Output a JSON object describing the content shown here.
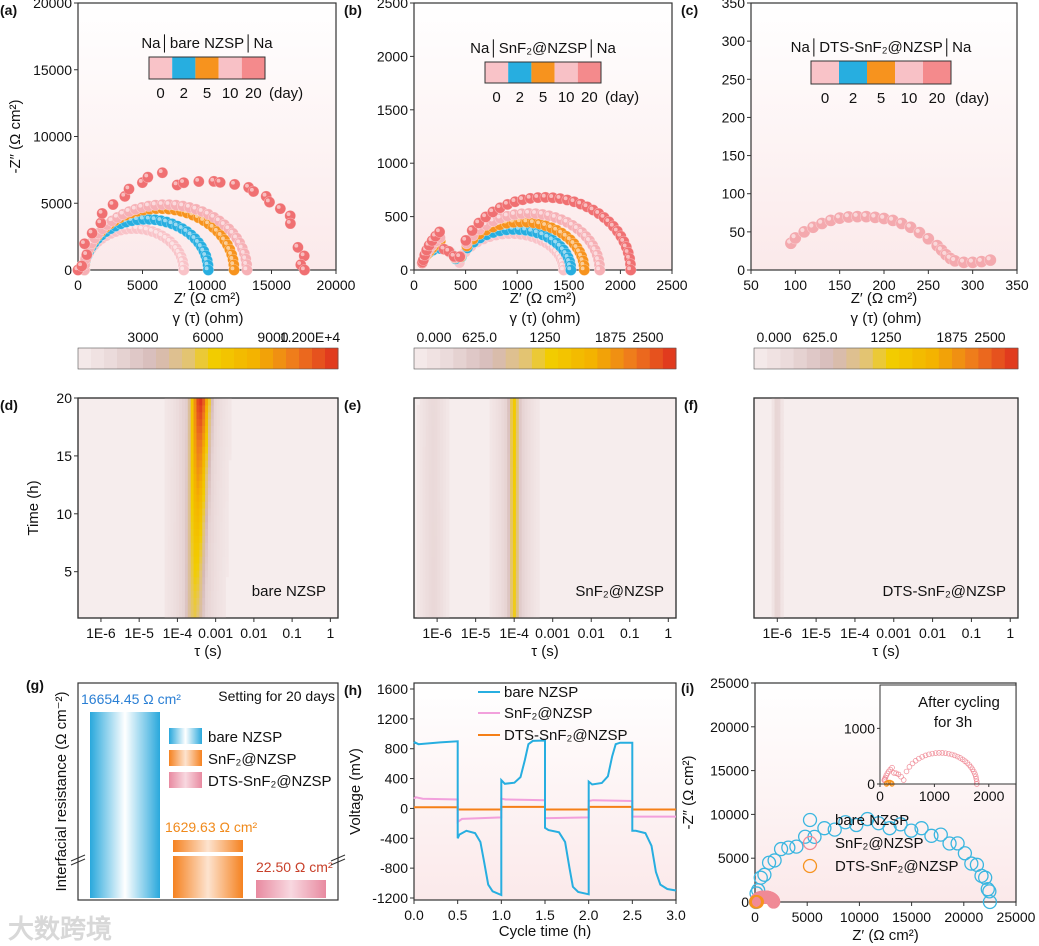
{
  "watermark": "大数跨境",
  "chart_data": [
    {
      "id": "a",
      "panel_label": "(a)",
      "type": "scatter",
      "xlabel": "Z′ (Ω cm²)",
      "ylabel": "-Z″ (Ω cm²)",
      "xlim": [
        0,
        20000
      ],
      "ylim": [
        0,
        20000
      ],
      "xticks": [
        "0",
        "5000",
        "10000",
        "15000",
        "20000"
      ],
      "xtick_values": [
        0,
        5000,
        10000,
        15000,
        20000
      ],
      "yticks": [
        "0",
        "5000",
        "10000",
        "15000",
        "20000"
      ],
      "ytick_values": [
        0,
        5000,
        10000,
        15000,
        20000
      ],
      "legend": {
        "title": "Na│bare NZSP│Na",
        "labels": [
          "0",
          "2",
          "5",
          "10",
          "20"
        ],
        "unit": "(day)",
        "colors": [
          "#f9c3c8",
          "#27aee0",
          "#f7931e",
          "#f8c1c6",
          "#f48a8c"
        ]
      },
      "series": [
        {
          "name": "0 day",
          "color": "#f9c3c8",
          "z_start": 500,
          "z_end": 8200,
          "peak": 3100,
          "n": 30
        },
        {
          "name": "2 day",
          "color": "#27aee0",
          "z_start": 500,
          "z_end": 10100,
          "peak": 3800,
          "n": 34
        },
        {
          "name": "5 day",
          "color": "#f7931e",
          "z_start": 500,
          "z_end": 12100,
          "peak": 4600,
          "n": 38
        },
        {
          "name": "10 day",
          "color": "#f6b0b5",
          "z_start": 500,
          "z_end": 13100,
          "peak": 4900,
          "n": 38
        },
        {
          "name": "20 day",
          "color": "#f07072",
          "z_start": 300,
          "z_end": 17500,
          "peak": 7000,
          "n": 30
        }
      ]
    },
    {
      "id": "b",
      "panel_label": "(b)",
      "type": "scatter",
      "xlabel": "Z′ (Ω cm²)",
      "ylabel": "",
      "xlim": [
        0,
        2500
      ],
      "ylim": [
        0,
        2500
      ],
      "xticks": [
        "0",
        "500",
        "1000",
        "1500",
        "2000",
        "2500"
      ],
      "xtick_values": [
        0,
        500,
        1000,
        1500,
        2000,
        2500
      ],
      "yticks": [
        "0",
        "500",
        "1000",
        "1500",
        "2000",
        "2500"
      ],
      "ytick_values": [
        0,
        500,
        1000,
        1500,
        2000,
        2500
      ],
      "legend": {
        "title": "Na│SnF₂@NZSP│Na",
        "labels": [
          "0",
          "2",
          "5",
          "10",
          "20"
        ],
        "unit": "(day)",
        "colors": [
          "#f9c3c8",
          "#27aee0",
          "#f7931e",
          "#f8c1c6",
          "#f48a8c"
        ]
      },
      "series": [
        {
          "name": "0 day",
          "color": "#f9c3c8",
          "z_start": 80,
          "z_end": 1450,
          "peak": 340,
          "n": 36
        },
        {
          "name": "2 day",
          "color": "#27aee0",
          "z_start": 80,
          "z_end": 1520,
          "peak": 380,
          "n": 36
        },
        {
          "name": "5 day",
          "color": "#f7931e",
          "z_start": 80,
          "z_end": 1650,
          "peak": 450,
          "n": 38
        },
        {
          "name": "10 day",
          "color": "#f6b0b5",
          "z_start": 80,
          "z_end": 1800,
          "peak": 530,
          "n": 40
        },
        {
          "name": "20 day",
          "color": "#f07072",
          "z_start": 80,
          "z_end": 2100,
          "peak": 680,
          "n": 44
        }
      ]
    },
    {
      "id": "c",
      "panel_label": "(c)",
      "type": "scatter",
      "xlabel": "Z′ (Ω cm²)",
      "ylabel": "",
      "xlim": [
        50,
        350
      ],
      "ylim": [
        0,
        350
      ],
      "xticks": [
        "50",
        "100",
        "150",
        "200",
        "250",
        "300",
        "350"
      ],
      "xtick_values": [
        50,
        100,
        150,
        200,
        250,
        300,
        350
      ],
      "yticks": [
        "0",
        "50",
        "100",
        "150",
        "200",
        "250",
        "300",
        "350"
      ],
      "ytick_values": [
        0,
        50,
        100,
        150,
        200,
        250,
        300,
        350
      ],
      "legend": {
        "title": "Na│DTS-SnF₂@NZSP│Na",
        "labels": [
          "0",
          "2",
          "5",
          "10",
          "20"
        ],
        "unit": "(day)",
        "colors": [
          "#f9c3c8",
          "#27aee0",
          "#f7931e",
          "#f8c1c6",
          "#f48a8c"
        ]
      },
      "series": [
        {
          "name": "all days (overlapping)",
          "color": "#f4a9ae",
          "points": [
            [
              95,
              35
            ],
            [
              100,
              42
            ],
            [
              110,
              50
            ],
            [
              120,
              56
            ],
            [
              130,
              61
            ],
            [
              140,
              65
            ],
            [
              150,
              68
            ],
            [
              160,
              69.5
            ],
            [
              170,
              70
            ],
            [
              180,
              70
            ],
            [
              190,
              69
            ],
            [
              200,
              67.5
            ],
            [
              210,
              65
            ],
            [
              220,
              61
            ],
            [
              230,
              56
            ],
            [
              240,
              49
            ],
            [
              250,
              41
            ],
            [
              260,
              32
            ],
            [
              265,
              26
            ],
            [
              270,
              20
            ],
            [
              275,
              15
            ],
            [
              280,
              12
            ],
            [
              290,
              10
            ],
            [
              300,
              10
            ],
            [
              310,
              11
            ],
            [
              320,
              13
            ]
          ]
        }
      ]
    },
    {
      "id": "d",
      "panel_label": "(d)",
      "type": "heatmap",
      "xlabel": "τ (s)",
      "ylabel": "Time (h)",
      "sample": "bare NZSP",
      "xscale": "log",
      "xlim_log10": [
        -6.6,
        0.2
      ],
      "ylim": [
        1,
        20
      ],
      "xticks": [
        "1E-6",
        "1E-5",
        "1E-4",
        "0.001",
        "0.01",
        "0.1",
        "1"
      ],
      "xtick_log10": [
        -6,
        -5,
        -4,
        -3,
        -2,
        -1,
        0
      ],
      "yticks": [
        "5",
        "10",
        "15",
        "20"
      ],
      "ytick_values": [
        5,
        10,
        15,
        20
      ],
      "colorbar": {
        "label": "γ (τ) (ohm)",
        "ticks": [
          "3000",
          "6000",
          "9000",
          "1.200E+4"
        ],
        "tick_values": [
          3000,
          6000,
          9000,
          12000
        ],
        "range": [
          0,
          12000
        ]
      },
      "peaks": [
        {
          "log10_tau": -3.55,
          "drift": 0.15,
          "sigma": 0.2,
          "amp_start": 5500,
          "amp_end": 12000
        },
        {
          "log10_tau": -3.55,
          "drift": 0.1,
          "sigma": 0.45,
          "amp_start": 2500,
          "amp_end": 3000
        }
      ]
    },
    {
      "id": "e",
      "panel_label": "(e)",
      "type": "heatmap",
      "xlabel": "τ (s)",
      "ylabel": "",
      "sample": "SnF₂@NZSP",
      "xscale": "log",
      "xlim_log10": [
        -6.6,
        0.2
      ],
      "ylim": [
        1,
        20
      ],
      "xticks": [
        "1E-6",
        "1E-5",
        "1E-4",
        "0.001",
        "0.01",
        "0.1",
        "1"
      ],
      "xtick_log10": [
        -6,
        -5,
        -4,
        -3,
        -2,
        -1,
        0
      ],
      "yticks": [],
      "ytick_values": [],
      "colorbar": {
        "label": "γ (τ) (ohm)",
        "ticks": [
          "0.000",
          "625.0",
          "1250",
          "1875",
          "2500"
        ],
        "tick_values": [
          0,
          625,
          1250,
          1875,
          2500
        ],
        "range": [
          0,
          2500
        ]
      },
      "peaks": [
        {
          "log10_tau": -4.0,
          "drift": 0,
          "sigma": 0.12,
          "amp_start": 1250,
          "amp_end": 1350
        },
        {
          "log10_tau": -4.0,
          "drift": 0,
          "sigma": 0.35,
          "amp_start": 500,
          "amp_end": 500
        },
        {
          "log10_tau": -6.1,
          "drift": 0,
          "sigma": 0.25,
          "amp_start": 350,
          "amp_end": 330
        }
      ]
    },
    {
      "id": "f",
      "panel_label": "(f)",
      "type": "heatmap",
      "xlabel": "τ (s)",
      "ylabel": "",
      "sample": "DTS-SnF₂@NZSP",
      "xscale": "log",
      "xlim_log10": [
        -6.6,
        0.2
      ],
      "ylim": [
        1,
        20
      ],
      "xticks": [
        "1E-6",
        "1E-5",
        "1E-4",
        "0.001",
        "0.01",
        "0.1",
        "1"
      ],
      "xtick_log10": [
        -6,
        -5,
        -4,
        -3,
        -2,
        -1,
        0
      ],
      "yticks": [],
      "ytick_values": [],
      "colorbar": {
        "label": "γ (τ) (ohm)",
        "ticks": [
          "0.000",
          "625.0",
          "1250",
          "1875",
          "2500"
        ],
        "tick_values": [
          0,
          625,
          1250,
          1875,
          2500
        ],
        "range": [
          0,
          2500
        ]
      },
      "peaks": [
        {
          "log10_tau": -6.0,
          "drift": 0,
          "sigma": 0.08,
          "amp_start": 420,
          "amp_end": 420
        }
      ]
    },
    {
      "id": "g",
      "panel_label": "(g)",
      "type": "bar",
      "title": "Setting for 20 days",
      "ylabel": "Interfacial resistance (Ω cm⁻²)",
      "categories": [
        "bare NZSP",
        "SnF₂@NZSP",
        "DTS-SnF₂@NZSP"
      ],
      "values": [
        16654.45,
        1629.63,
        22.5
      ],
      "value_labels": [
        "16654.45 Ω cm²",
        "1629.63 Ω cm²",
        "22.50 Ω cm²"
      ],
      "label_colors": [
        "#2a7fd4",
        "#f08a1c",
        "#c8402a"
      ],
      "bar_colors": [
        "#29a8dc",
        "#f58220",
        "#e88aa0"
      ],
      "broken_axis": true
    },
    {
      "id": "h",
      "panel_label": "(h)",
      "type": "line",
      "xlabel": "Cycle time (h)",
      "ylabel": "Voltage (mV)",
      "xlim": [
        0,
        3
      ],
      "ylim": [
        -1200,
        1600
      ],
      "xticks": [
        "0.0",
        "0.5",
        "1.0",
        "1.5",
        "2.0",
        "2.5",
        "3.0"
      ],
      "xtick_values": [
        0,
        0.5,
        1,
        1.5,
        2,
        2.5,
        3
      ],
      "yticks": [
        "-1200",
        "-800",
        "-400",
        "0",
        "400",
        "800",
        "1200",
        "1600"
      ],
      "ytick_values": [
        -1200,
        -800,
        -400,
        0,
        400,
        800,
        1200,
        1600
      ],
      "series": [
        {
          "name": "bare NZSP",
          "color": "#27aee0",
          "points": [
            [
              0,
              870
            ],
            [
              0.01,
              885
            ],
            [
              0.05,
              860
            ],
            [
              0.3,
              885
            ],
            [
              0.5,
              900
            ],
            [
              0.5,
              -400
            ],
            [
              0.52,
              -350
            ],
            [
              0.6,
              -300
            ],
            [
              0.7,
              -330
            ],
            [
              0.76,
              -450
            ],
            [
              0.8,
              -700
            ],
            [
              0.85,
              -1020
            ],
            [
              0.9,
              -1110
            ],
            [
              1.0,
              -1160
            ],
            [
              1.0,
              380
            ],
            [
              1.04,
              330
            ],
            [
              1.15,
              345
            ],
            [
              1.22,
              420
            ],
            [
              1.27,
              650
            ],
            [
              1.31,
              860
            ],
            [
              1.36,
              905
            ],
            [
              1.5,
              910
            ],
            [
              1.5,
              -260
            ],
            [
              1.54,
              -290
            ],
            [
              1.66,
              -320
            ],
            [
              1.73,
              -450
            ],
            [
              1.78,
              -800
            ],
            [
              1.82,
              -1050
            ],
            [
              1.88,
              -1120
            ],
            [
              2.0,
              -1150
            ],
            [
              2.0,
              360
            ],
            [
              2.04,
              320
            ],
            [
              2.15,
              340
            ],
            [
              2.22,
              430
            ],
            [
              2.27,
              700
            ],
            [
              2.31,
              860
            ],
            [
              2.36,
              880
            ],
            [
              2.5,
              880
            ],
            [
              2.5,
              -300
            ],
            [
              2.54,
              -300
            ],
            [
              2.65,
              -330
            ],
            [
              2.72,
              -500
            ],
            [
              2.77,
              -850
            ],
            [
              2.82,
              -1020
            ],
            [
              2.9,
              -1080
            ],
            [
              3.0,
              -1100
            ]
          ]
        },
        {
          "name": "SnF₂@NZSP",
          "color": "#f2a0dc",
          "points": [
            [
              0,
              130
            ],
            [
              0.02,
              150
            ],
            [
              0.1,
              130
            ],
            [
              0.5,
              120
            ],
            [
              0.5,
              -180
            ],
            [
              0.55,
              -140
            ],
            [
              1.0,
              -120
            ],
            [
              1.0,
              130
            ],
            [
              1.05,
              120
            ],
            [
              1.5,
              110
            ],
            [
              1.5,
              -130
            ],
            [
              1.55,
              -130
            ],
            [
              2.0,
              -120
            ],
            [
              2.0,
              100
            ],
            [
              2.05,
              110
            ],
            [
              2.5,
              100
            ],
            [
              2.5,
              -110
            ],
            [
              3.0,
              -110
            ]
          ]
        },
        {
          "name": "DTS-SnF₂@NZSP",
          "color": "#f57f17",
          "points": [
            [
              0,
              15
            ],
            [
              0.5,
              15
            ],
            [
              0.5,
              -15
            ],
            [
              1.0,
              -15
            ],
            [
              1.0,
              20
            ],
            [
              1.5,
              20
            ],
            [
              1.5,
              -15
            ],
            [
              2.0,
              -15
            ],
            [
              2.0,
              20
            ],
            [
              2.5,
              20
            ],
            [
              2.5,
              -15
            ],
            [
              3.0,
              -15
            ]
          ]
        }
      ]
    },
    {
      "id": "i",
      "panel_label": "(i)",
      "type": "scatter",
      "xlabel": "Z′ (Ω cm²)",
      "ylabel": "-Z″ (Ω cm²)",
      "xlim": [
        0,
        25000
      ],
      "ylim": [
        0,
        25000
      ],
      "xticks": [
        "0",
        "5000",
        "10000",
        "15000",
        "20000",
        "25000"
      ],
      "xtick_values": [
        0,
        5000,
        10000,
        15000,
        20000,
        25000
      ],
      "yticks": [
        "0",
        "5000",
        "10000",
        "15000",
        "20000",
        "25000"
      ],
      "ytick_values": [
        0,
        5000,
        10000,
        15000,
        20000,
        25000
      ],
      "series": [
        {
          "name": "bare NZSP",
          "color": "#3bb6e0",
          "z_start": 100,
          "z_end": 22500,
          "peak": 9000,
          "n": 34
        },
        {
          "name": "SnF₂@NZSP",
          "color": "#f08a96",
          "z_start": 80,
          "z_end": 1780,
          "peak": 560,
          "n": 40
        },
        {
          "name": "DTS-SnF₂@NZSP",
          "color": "#f7931e",
          "z_start": 60,
          "z_end": 220,
          "peak": 40,
          "n": 8
        }
      ],
      "inset": {
        "annotation": [
          "After cycling",
          "for 3h"
        ],
        "xlim": [
          0,
          2500
        ],
        "ylim": [
          0,
          1780
        ],
        "xticks": [
          "0",
          "1000",
          "2000"
        ],
        "xtick_values": [
          0,
          1000,
          2000
        ],
        "yticks": [
          "0",
          "1000"
        ],
        "ytick_values": [
          0,
          1000
        ]
      }
    }
  ]
}
